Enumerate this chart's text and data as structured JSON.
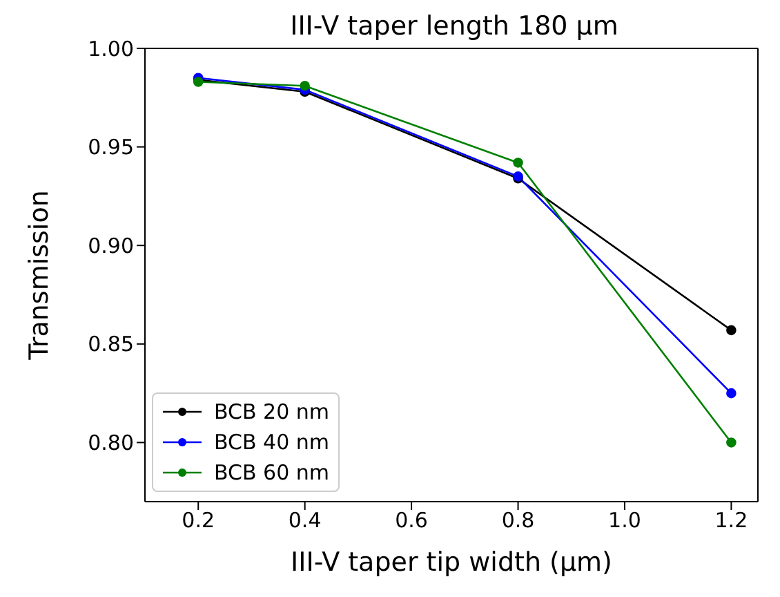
{
  "chart_data": {
    "type": "line",
    "title": "III-V taper length 180 μm",
    "xlabel": "III-V taper tip width (μm)",
    "ylabel": "Transmission",
    "x": [
      0.2,
      0.4,
      0.8,
      1.2
    ],
    "series": [
      {
        "name": "BCB 20 nm",
        "color": "#000000",
        "values": [
          0.984,
          0.978,
          0.934,
          0.857
        ]
      },
      {
        "name": "BCB 40 nm",
        "color": "#0000ff",
        "values": [
          0.985,
          0.979,
          0.935,
          0.825
        ]
      },
      {
        "name": "BCB 60 nm",
        "color": "#008000",
        "values": [
          0.983,
          0.981,
          0.942,
          0.8
        ]
      }
    ],
    "xlim": [
      0.1,
      1.25
    ],
    "xticks": [
      0.2,
      0.4,
      0.6,
      0.8,
      {
        "value": 1.0,
        "label": "1.0"
      },
      1.2
    ],
    "ylim": [
      0.77,
      1.0
    ],
    "yticks": [
      {
        "value": 0.8,
        "label": "0.80"
      },
      0.85,
      {
        "value": 0.9,
        "label": "0.90"
      },
      0.95,
      {
        "value": 1.0,
        "label": "1.00"
      }
    ],
    "marker": "circle",
    "line_style": "solid",
    "grid": false,
    "legend": "bottom left"
  }
}
